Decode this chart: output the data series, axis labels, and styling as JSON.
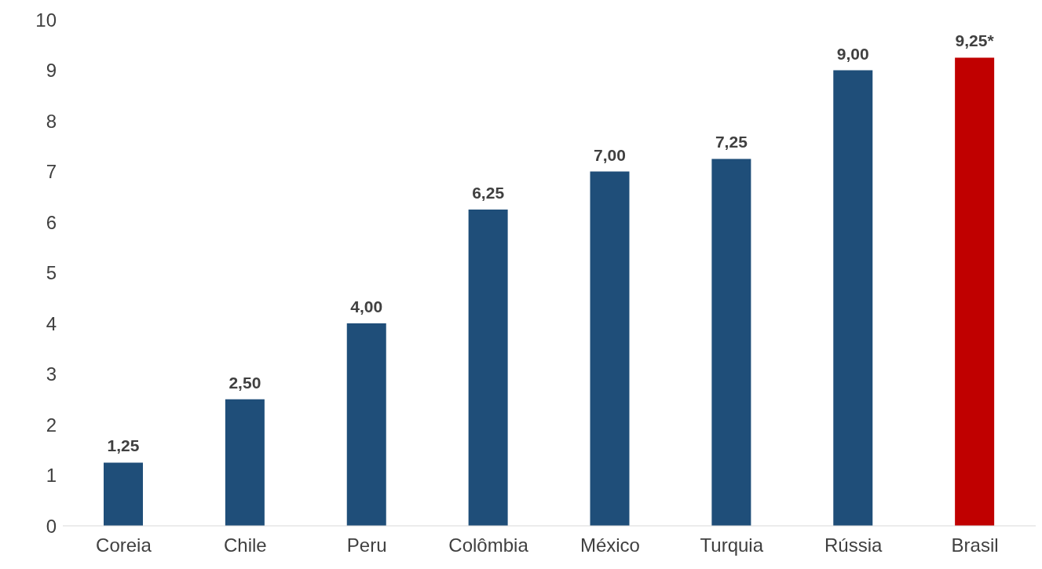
{
  "chart_data": {
    "type": "bar",
    "categories": [
      "Coreia",
      "Chile",
      "Peru",
      "Colômbia",
      "México",
      "Turquia",
      "Rússia",
      "Brasil"
    ],
    "values": [
      1.25,
      2.5,
      4,
      6.25,
      7,
      7.25,
      9,
      9.25
    ],
    "colors": [
      "#1f4e79",
      "#1f4e79",
      "#1f4e79",
      "#1f4e79",
      "#1f4e79",
      "#1f4e79",
      "#1f4e79",
      "#c00000"
    ],
    "value_labels": [
      "1,25",
      "2,50",
      "4,00",
      "6,25",
      "7,00",
      "7,25",
      "9,00",
      "9,25*"
    ],
    "ylim": [
      0,
      10
    ],
    "yticks": [
      0,
      1,
      2,
      3,
      4,
      5,
      6,
      7,
      8,
      9,
      10
    ]
  }
}
